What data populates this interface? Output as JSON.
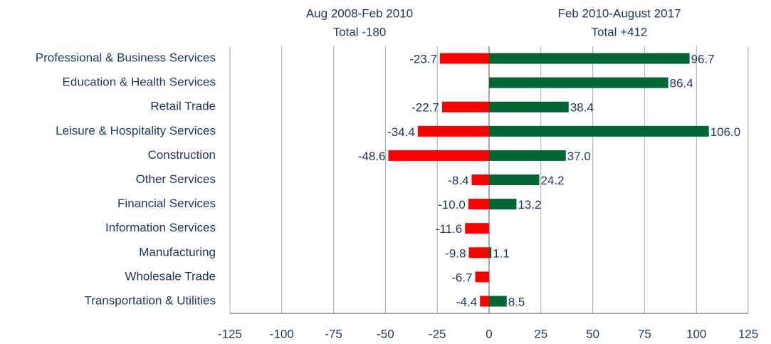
{
  "chart_data": {
    "type": "bar",
    "orientation": "horizontal",
    "categories": [
      "Professional & Business Services",
      "Education & Health Services",
      "Retail Trade",
      "Leisure & Hospitality Services",
      "Construction",
      "Other Services",
      "Financial Services",
      "Information Services",
      "Manufacturing",
      "Wholesale Trade",
      "Transportation & Utilities"
    ],
    "series": [
      {
        "name": "Aug 2008-Feb 2010",
        "color": "#ff0000",
        "annotation": "Total -180",
        "values": [
          -23.7,
          null,
          -22.7,
          -34.4,
          -48.6,
          -8.4,
          -10.0,
          -11.6,
          -9.8,
          -6.7,
          -4.4
        ],
        "value_labels": [
          "-23.7",
          null,
          "-22.7",
          "-34.4",
          "-48.6",
          "-8.4",
          "-10.0",
          "-11.6",
          "-9.8",
          "-6.7",
          "-4.4"
        ]
      },
      {
        "name": "Feb 2010-August 2017",
        "color": "#006633",
        "annotation": "Total +412",
        "values": [
          96.7,
          86.4,
          38.4,
          106.0,
          37.0,
          24.2,
          13.2,
          null,
          1.1,
          null,
          8.5
        ],
        "value_labels": [
          "96.7",
          "86.4",
          "38.4",
          "106.0",
          "37.0",
          "24.2",
          "13.2",
          null,
          "1.1",
          null,
          "8.5"
        ]
      }
    ],
    "xlim": [
      -125,
      125
    ],
    "xticks": [
      -125,
      -100,
      -75,
      -50,
      -25,
      0,
      25,
      50,
      75,
      100,
      125
    ],
    "grid": true
  }
}
